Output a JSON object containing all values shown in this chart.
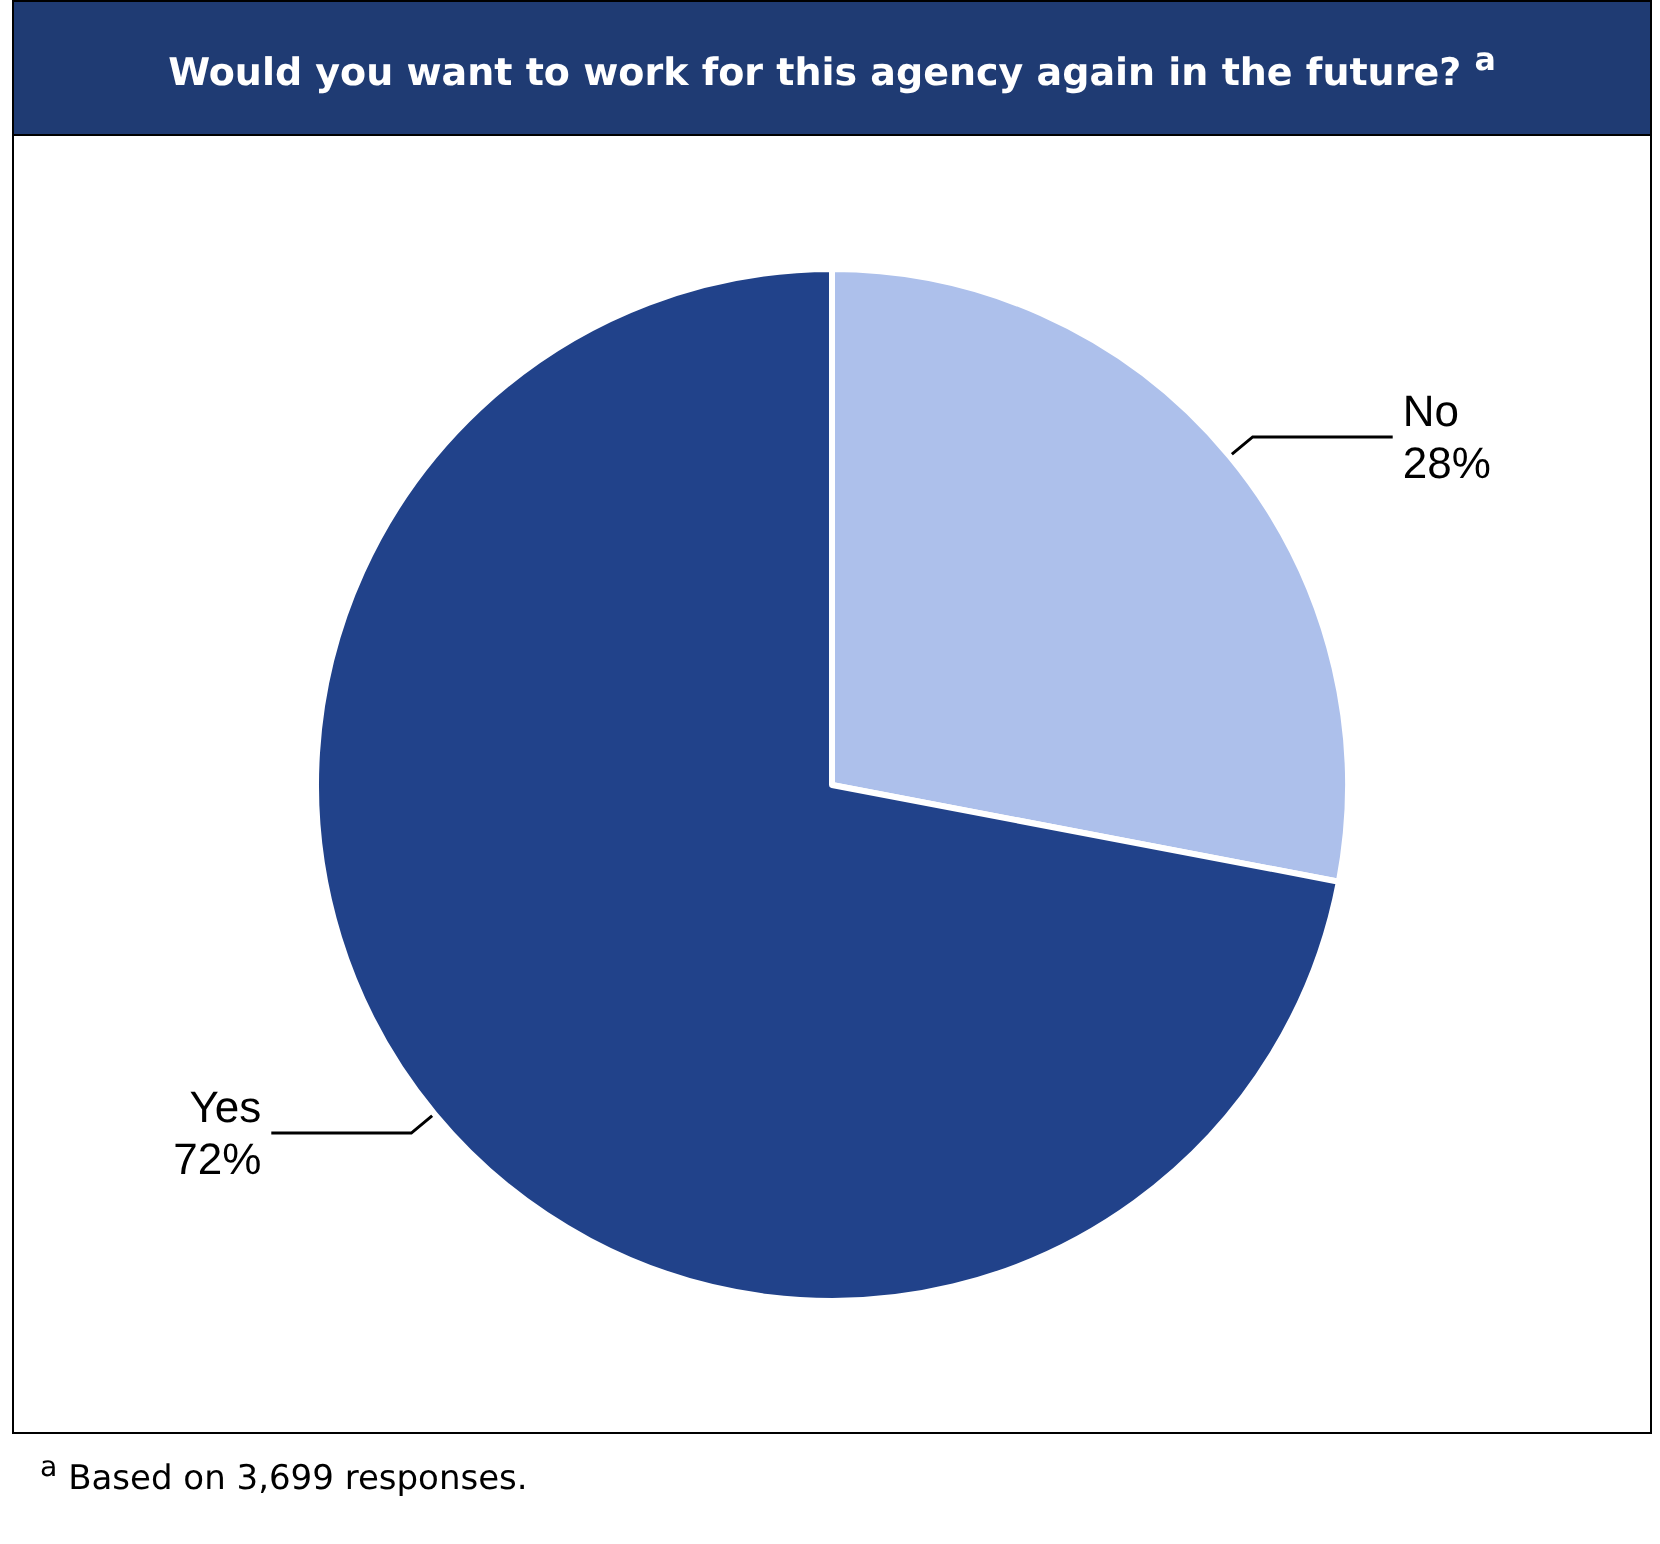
{
  "chart_data": {
    "type": "pie",
    "title": "Would you want to work for this agency again in the future? $^{a}$",
    "categories": [
      "No",
      "Yes"
    ],
    "values": [
      28,
      72
    ],
    "colors": [
      "#adc0eb",
      "#21428a"
    ],
    "value_labels": [
      "28%",
      "72%"
    ],
    "annotations": [
      "$^{a}$ Based on 3,699 responses."
    ]
  }
}
